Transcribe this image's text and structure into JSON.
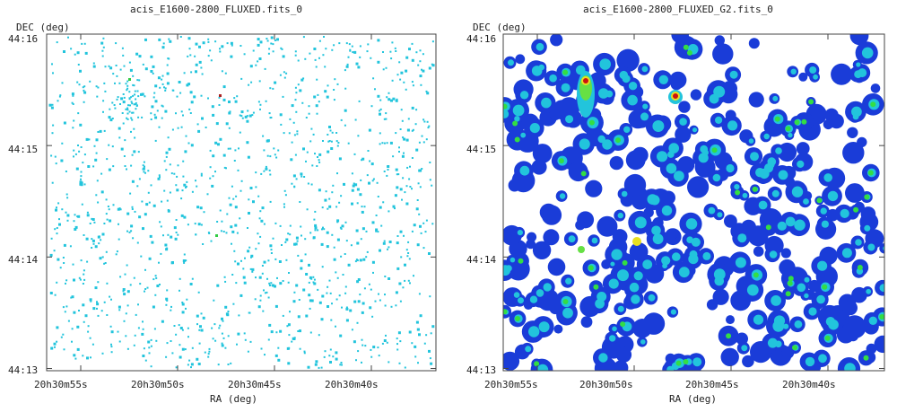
{
  "chart_data": [
    {
      "type": "heatmap",
      "title": "acis_E1600-2800_FLUXED.fits_0",
      "xlabel": "RA (deg)",
      "ylabel": "DEC (deg)",
      "x_ticks": [
        "20h30m55s",
        "20h30m50s",
        "20h30m45s",
        "20h30m40s"
      ],
      "y_ticks": [
        "44:16",
        "44:15",
        "44:14",
        "44:13"
      ],
      "style": "sparse-counts",
      "colors": {
        "low": "#22c4dc",
        "mid": "#33cc44",
        "high": "#aa2222"
      }
    },
    {
      "type": "heatmap",
      "title": "acis_E1600-2800_FLUXED_G2.fits_0",
      "xlabel": "RA (deg)",
      "ylabel": "DEC (deg)",
      "x_ticks": [
        "20h30m55s",
        "20h30m50s",
        "20h30m45s",
        "20h30m40s"
      ],
      "y_ticks": [
        "44:16",
        "44:15",
        "44:14",
        "44:13"
      ],
      "style": "smoothed",
      "colors": {
        "low": "#1a3cd8",
        "mid": "#22c4dc",
        "high": "#cc1111"
      }
    }
  ]
}
